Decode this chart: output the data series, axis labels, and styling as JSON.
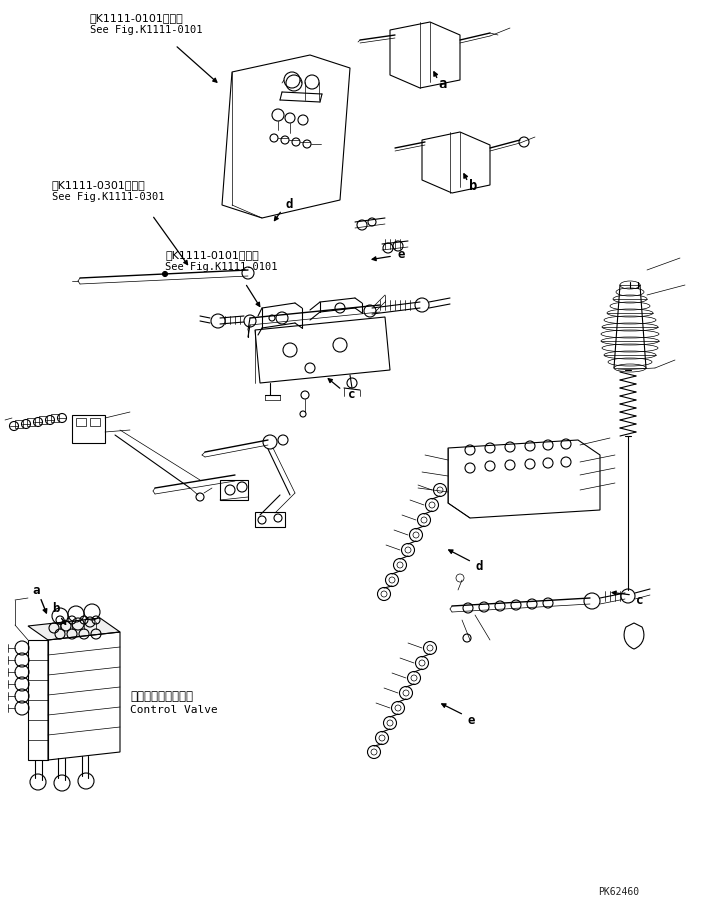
{
  "bg_color": "#ffffff",
  "line_color": "#000000",
  "fig_width": 7.15,
  "fig_height": 9.05,
  "dpi": 100,
  "part_code": "PK62460",
  "ref1_jp": "第K1111-0101図参照",
  "ref1_en": "See Fig.K1111-0101",
  "ref2_jp": "第K1111-0301図参照",
  "ref2_en": "See Fig.K1111-0301",
  "ref3_jp": "第K1111-0101図参照",
  "ref3_en": "See Fig.K1111-0101",
  "cv_jp": "コントロールバルブ",
  "cv_en": "Control Valve",
  "label_a": "a",
  "label_b": "b",
  "label_c": "c",
  "label_d": "d",
  "label_e": "e"
}
